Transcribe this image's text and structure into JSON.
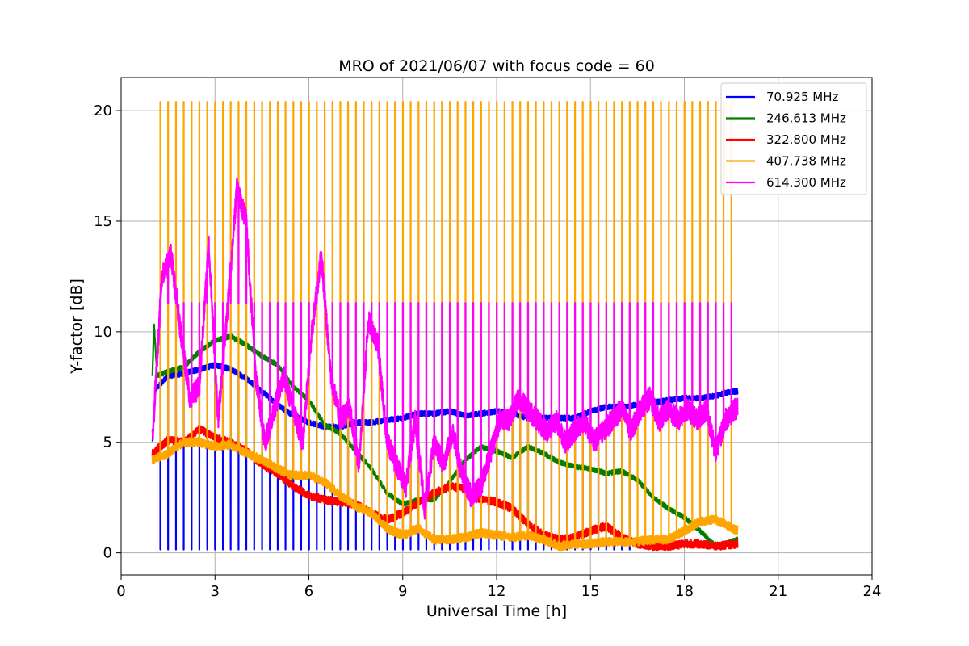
{
  "chart_data": {
    "type": "line",
    "title": "MRO of 2021/06/07 with focus code = 60",
    "xlabel": "Universal Time [h]",
    "ylabel": "Y-factor [dB]",
    "xlim": [
      0,
      24
    ],
    "ylim": [
      -1,
      21.5
    ],
    "xticks": [
      0,
      3,
      6,
      9,
      12,
      15,
      18,
      21,
      24
    ],
    "yticks": [
      0,
      5,
      10,
      15,
      20
    ],
    "grid": true,
    "legend_position": "top-right",
    "periodic_calibration": {
      "start_h": 1.25,
      "end_h": 19.65,
      "period_h": 0.25,
      "spike_series": [
        {
          "series": "407.738 MHz",
          "peak": 20.4
        },
        {
          "series": "614.300 MHz",
          "peak": 11.3
        }
      ],
      "dip_series": [
        {
          "series": "70.925 MHz",
          "floor": 0.15,
          "until_h": 16.5
        }
      ]
    },
    "series": [
      {
        "name": "70.925 MHz",
        "legend_label": "  70.925 MHz",
        "color": "#0000ff",
        "x": [
          1.0,
          1.1,
          1.5,
          2.0,
          2.5,
          3.0,
          3.5,
          4.0,
          4.5,
          5.0,
          5.5,
          6.0,
          6.5,
          7.0,
          7.5,
          8.0,
          8.5,
          9.0,
          9.5,
          10.0,
          10.5,
          11.0,
          11.5,
          12.0,
          12.5,
          13.0,
          13.5,
          14.0,
          14.5,
          15.0,
          15.5,
          16.0,
          16.5,
          17.0,
          17.5,
          18.0,
          18.5,
          19.0,
          19.5,
          19.7
        ],
        "y": [
          5.0,
          7.4,
          8.0,
          8.1,
          8.3,
          8.5,
          8.3,
          7.9,
          7.3,
          6.7,
          6.2,
          5.9,
          5.7,
          5.7,
          5.9,
          5.9,
          6.0,
          6.1,
          6.3,
          6.3,
          6.4,
          6.2,
          6.3,
          6.4,
          6.3,
          6.1,
          6.1,
          6.1,
          6.1,
          6.4,
          6.6,
          6.6,
          6.7,
          6.8,
          6.9,
          7.0,
          7.0,
          7.1,
          7.3,
          7.3
        ]
      },
      {
        "name": "246.613 MHz",
        "legend_label": "246.613 MHz",
        "color": "#008000",
        "x": [
          1.0,
          1.05,
          1.15,
          1.5,
          2.0,
          2.5,
          3.0,
          3.5,
          4.0,
          4.5,
          5.0,
          5.5,
          6.0,
          6.5,
          7.0,
          7.5,
          8.0,
          8.5,
          9.0,
          9.5,
          10.0,
          10.5,
          11.0,
          11.5,
          12.0,
          12.5,
          13.0,
          13.5,
          14.0,
          14.5,
          15.0,
          15.5,
          16.0,
          16.5,
          17.0,
          17.5,
          18.0,
          18.5,
          19.0,
          19.7
        ],
        "y": [
          8.0,
          10.4,
          8.0,
          8.2,
          8.4,
          9.1,
          9.6,
          9.8,
          9.4,
          8.9,
          8.5,
          7.5,
          6.9,
          5.8,
          5.4,
          4.6,
          3.8,
          2.7,
          2.2,
          2.4,
          2.4,
          3.2,
          4.2,
          4.8,
          4.6,
          4.3,
          4.8,
          4.5,
          4.1,
          3.9,
          3.8,
          3.6,
          3.7,
          3.3,
          2.5,
          2.0,
          1.6,
          1.0,
          0.3,
          0.6
        ]
      },
      {
        "name": "322.800 MHz",
        "legend_label": "322.800 MHz",
        "color": "#ff0000",
        "x": [
          1.0,
          1.5,
          2.0,
          2.5,
          3.0,
          3.5,
          4.0,
          4.5,
          5.0,
          5.5,
          6.0,
          6.5,
          7.0,
          7.5,
          8.0,
          8.5,
          9.0,
          9.5,
          10.0,
          10.5,
          11.0,
          11.5,
          12.0,
          12.5,
          13.0,
          13.5,
          14.0,
          14.5,
          15.0,
          15.5,
          16.0,
          16.5,
          17.0,
          17.5,
          18.0,
          18.5,
          19.0,
          19.7
        ],
        "y": [
          4.5,
          5.1,
          5.0,
          5.6,
          5.2,
          5.0,
          4.6,
          4.0,
          3.6,
          3.0,
          2.6,
          2.4,
          2.3,
          2.2,
          1.8,
          1.5,
          1.8,
          2.3,
          2.7,
          3.0,
          2.9,
          2.4,
          2.3,
          2.0,
          1.3,
          0.8,
          0.6,
          0.7,
          1.0,
          1.2,
          0.7,
          0.4,
          0.3,
          0.3,
          0.4,
          0.4,
          0.3,
          0.4
        ]
      },
      {
        "name": "407.738 MHz",
        "legend_label": "407.738 MHz",
        "color": "#ffa500",
        "x": [
          1.0,
          1.5,
          2.0,
          2.5,
          3.0,
          3.5,
          4.0,
          4.5,
          5.0,
          5.5,
          6.0,
          6.5,
          7.0,
          7.5,
          8.0,
          8.5,
          9.0,
          9.5,
          10.0,
          10.5,
          11.0,
          11.5,
          12.0,
          12.5,
          13.0,
          13.5,
          14.0,
          14.5,
          15.0,
          15.5,
          16.0,
          16.5,
          17.0,
          17.5,
          18.0,
          18.5,
          19.0,
          19.7
        ],
        "y": [
          4.2,
          4.5,
          5.0,
          5.0,
          4.8,
          4.9,
          4.5,
          4.2,
          3.8,
          3.5,
          3.5,
          3.2,
          2.6,
          2.1,
          1.8,
          1.1,
          0.8,
          1.1,
          0.6,
          0.6,
          0.7,
          0.9,
          0.8,
          0.7,
          0.8,
          0.6,
          0.3,
          0.4,
          0.4,
          0.5,
          0.5,
          0.5,
          0.6,
          0.6,
          1.0,
          1.4,
          1.5,
          1.0
        ]
      },
      {
        "name": "614.300 MHz",
        "legend_label": "614.300 MHz",
        "color": "#ff00ff",
        "x": [
          1.0,
          1.3,
          1.6,
          1.9,
          2.2,
          2.5,
          2.8,
          3.1,
          3.4,
          3.7,
          4.0,
          4.3,
          4.6,
          4.9,
          5.2,
          5.5,
          5.8,
          6.1,
          6.4,
          6.7,
          7.0,
          7.3,
          7.6,
          7.9,
          8.2,
          8.5,
          8.8,
          9.1,
          9.4,
          9.7,
          10.0,
          10.3,
          10.6,
          10.9,
          11.2,
          11.5,
          11.8,
          12.1,
          12.4,
          12.7,
          13.0,
          13.3,
          13.6,
          13.9,
          14.2,
          14.5,
          14.8,
          15.1,
          15.4,
          15.7,
          16.0,
          16.3,
          16.6,
          16.9,
          17.2,
          17.5,
          17.8,
          18.1,
          18.4,
          18.7,
          19.0,
          19.3,
          19.7
        ],
        "y": [
          5.0,
          12.5,
          13.5,
          10.0,
          7.0,
          7.5,
          14.0,
          6.0,
          11.0,
          16.5,
          15.0,
          8.0,
          5.0,
          6.5,
          8.0,
          6.5,
          5.0,
          10.0,
          13.5,
          8.0,
          6.0,
          6.5,
          4.0,
          10.5,
          9.5,
          5.0,
          4.0,
          3.0,
          6.0,
          2.0,
          5.0,
          4.0,
          5.5,
          3.5,
          2.5,
          3.0,
          4.5,
          6.0,
          6.0,
          7.0,
          6.5,
          6.0,
          5.5,
          6.0,
          5.0,
          5.5,
          6.0,
          5.0,
          5.5,
          6.0,
          6.5,
          5.5,
          6.5,
          7.0,
          6.0,
          6.5,
          6.0,
          6.5,
          6.0,
          6.5,
          4.5,
          6.0,
          6.6
        ]
      }
    ]
  }
}
